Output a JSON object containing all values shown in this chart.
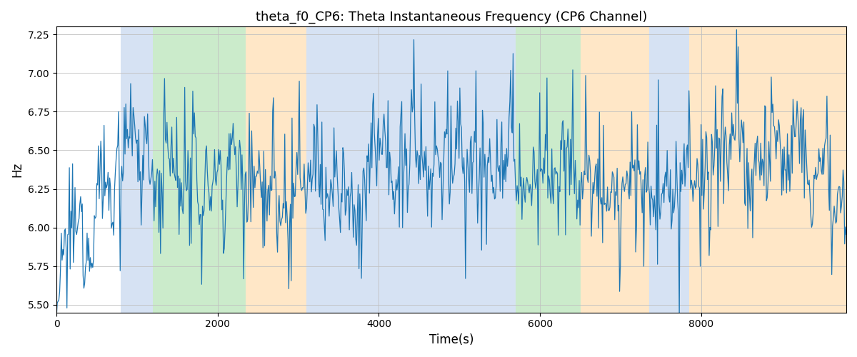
{
  "title": "theta_f0_CP6: Theta Instantaneous Frequency (CP6 Channel)",
  "xlabel": "Time(s)",
  "ylabel": "Hz",
  "xlim": [
    0,
    9800
  ],
  "ylim": [
    5.45,
    7.3
  ],
  "yticks": [
    5.5,
    5.75,
    6.0,
    6.25,
    6.5,
    6.75,
    7.0,
    7.25
  ],
  "line_color": "#1f77b4",
  "line_width": 0.9,
  "background_color": "#ffffff",
  "grid_color": "#c0c0c0",
  "seed": 12345,
  "n_points": 980,
  "x_scale": 10,
  "colored_bands": [
    {
      "xmin": 800,
      "xmax": 1200,
      "color": "#aec6e8",
      "alpha": 0.5
    },
    {
      "xmin": 1200,
      "xmax": 2350,
      "color": "#98d898",
      "alpha": 0.5
    },
    {
      "xmin": 2350,
      "xmax": 3100,
      "color": "#ffd090",
      "alpha": 0.5
    },
    {
      "xmin": 3100,
      "xmax": 5500,
      "color": "#aec6e8",
      "alpha": 0.5
    },
    {
      "xmin": 5500,
      "xmax": 5700,
      "color": "#aec6e8",
      "alpha": 0.5
    },
    {
      "xmin": 5700,
      "xmax": 6500,
      "color": "#98d898",
      "alpha": 0.5
    },
    {
      "xmin": 6500,
      "xmax": 7350,
      "color": "#ffd090",
      "alpha": 0.5
    },
    {
      "xmin": 7350,
      "xmax": 7850,
      "color": "#aec6e8",
      "alpha": 0.5
    },
    {
      "xmin": 7850,
      "xmax": 9800,
      "color": "#ffd090",
      "alpha": 0.5
    }
  ]
}
